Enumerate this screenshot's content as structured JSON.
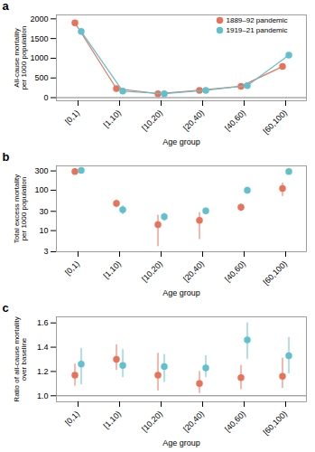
{
  "chart_data": [
    {
      "type": "line",
      "title": "a",
      "xlabel": "Age group",
      "ylabel": "All-cause mortality\nper 1000 population",
      "categories": [
        "[0,1)",
        "[1,10)",
        "[10,20)",
        "[20,40)",
        "[40,60)",
        "[60,100)"
      ],
      "series": [
        {
          "name": "1889–92 pandemic",
          "color": "#E8735A",
          "marker": "o",
          "line_style": "solid",
          "values": [
            1900,
            230,
            100,
            185,
            290,
            790
          ],
          "yerr_lo": [
            30,
            15,
            10,
            15,
            20,
            40
          ],
          "yerr_hi": [
            30,
            15,
            10,
            15,
            20,
            40
          ]
        },
        {
          "name": "1919–21 pandemic",
          "color": "#62C0CE",
          "marker": "o",
          "line_style": "solid",
          "values": [
            1680,
            165,
            100,
            185,
            305,
            1080
          ],
          "yerr_lo": [
            30,
            15,
            10,
            15,
            20,
            40
          ],
          "yerr_hi": [
            30,
            15,
            10,
            15,
            20,
            40
          ]
        }
      ],
      "ylim": [
        -80,
        2100
      ],
      "yticks": [
        0,
        500,
        1000,
        1500,
        2000
      ],
      "baseline": 0,
      "legend": "upper right"
    },
    {
      "type": "scatter",
      "title": "b",
      "xlabel": "Age group",
      "ylabel": "Total excess mortality\nper 1000 population",
      "categories": [
        "[0,1)",
        "[1,10)",
        "[10,20)",
        "[20,40)",
        "[40,60)",
        "[60,100)"
      ],
      "series": [
        {
          "color": "#E8735A",
          "marker": "o",
          "values": [
            290,
            47,
            14,
            18,
            38,
            110
          ],
          "yerr_lo": [
            50,
            10,
            10,
            12,
            8,
            40
          ],
          "yerr_hi": [
            50,
            10,
            10,
            10,
            8,
            40
          ]
        },
        {
          "color": "#62C0CE",
          "marker": "o",
          "values": [
            310,
            33,
            22,
            31,
            100,
            290
          ],
          "yerr_lo": [
            30,
            8,
            5,
            5,
            20,
            30
          ],
          "yerr_hi": [
            30,
            8,
            5,
            5,
            20,
            30
          ]
        }
      ],
      "log": "y",
      "ylim": [
        3,
        400
      ],
      "yticks": [
        3,
        10,
        30,
        100,
        300
      ]
    },
    {
      "type": "scatter",
      "title": "c",
      "xlabel": "Age group",
      "ylabel": "Ratio of all-cause mortality\nover baseline",
      "categories": [
        "[0,1)",
        "[1,10)",
        "[10,20)",
        "[20,40)",
        "[40,60)",
        "[60,100)"
      ],
      "series": [
        {
          "color": "#E8735A",
          "marker": "o",
          "values": [
            1.17,
            1.3,
            1.17,
            1.1,
            1.15,
            1.16
          ],
          "yerr_lo": [
            0.09,
            0.09,
            0.13,
            0.08,
            0.1,
            0.1
          ],
          "yerr_hi": [
            0.09,
            0.12,
            0.18,
            0.1,
            0.1,
            0.15
          ]
        },
        {
          "color": "#62C0CE",
          "marker": "o",
          "values": [
            1.26,
            1.25,
            1.24,
            1.23,
            1.46,
            1.33
          ],
          "yerr_lo": [
            0.17,
            0.1,
            0.13,
            0.08,
            0.16,
            0.15
          ],
          "yerr_hi": [
            0.13,
            0.13,
            0.1,
            0.1,
            0.14,
            0.15
          ]
        }
      ],
      "ylim": [
        0.95,
        1.65
      ],
      "yticks": [
        {
          "value": 1.0,
          "label": "1.0"
        },
        {
          "value": 1.2,
          "label": "1.2"
        },
        {
          "value": 1.4,
          "label": "1.4"
        },
        {
          "value": 1.6,
          "label": "1.6"
        }
      ],
      "baseline": 1.0
    }
  ]
}
